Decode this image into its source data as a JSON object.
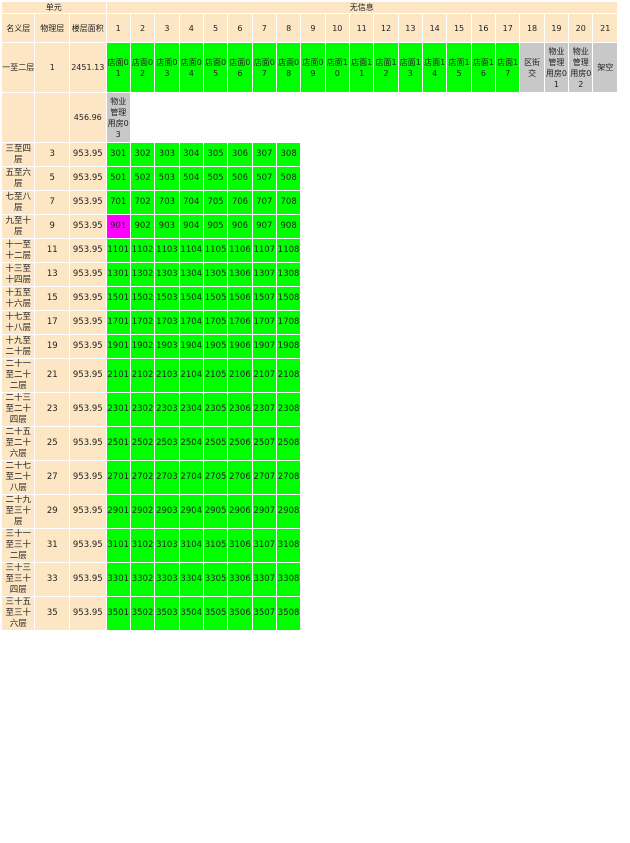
{
  "header": {
    "unit_label": "单元",
    "info_label": "无信息",
    "columns": [
      "名义层",
      "物理层",
      "楼层面积"
    ],
    "unit_numbers": [
      1,
      2,
      3,
      4,
      5,
      6,
      7,
      8,
      9,
      10,
      11,
      12,
      13,
      14,
      15,
      16,
      17,
      18,
      19,
      20,
      21
    ]
  },
  "rows": [
    {
      "name": "一至二层",
      "floor": 1,
      "area": 2451.13,
      "units": [
        "店面01",
        "店面02",
        "店面03",
        "店面04",
        "店面05",
        "店面06",
        "店面07",
        "店面08",
        "店面09",
        "店面10",
        "店面11",
        "店面12",
        "店面13",
        "店面14",
        "店面15",
        "店面16",
        "店面17",
        "区街交",
        "物业管理用房01",
        "物业管理用房02",
        "架空"
      ],
      "colors": [
        "#00ff00",
        "#00ff00",
        "#00ff00",
        "#00ff00",
        "#00ff00",
        "#00ff00",
        "#00ff00",
        "#00ff00",
        "#00ff00",
        "#00ff00",
        "#00ff00",
        "#00ff00",
        "#00ff00",
        "#00ff00",
        "#00ff00",
        "#00ff00",
        "#00ff00",
        "#c8c8c8",
        "#c8c8c8",
        "#c8c8c8",
        "#c8c8c8"
      ]
    },
    {
      "area": 456.96,
      "units": [
        "物业管理用房03"
      ],
      "colors": [
        "#c8c8c8"
      ]
    },
    {
      "name": "三至四层",
      "floor": 3,
      "area": 953.95,
      "units": [
        "301",
        "302",
        "303",
        "304",
        "305",
        "306",
        "307",
        "308"
      ],
      "colors": [
        "#00ff00",
        "#00ff00",
        "#00ff00",
        "#00ff00",
        "#00ff00",
        "#00ff00",
        "#00ff00",
        "#00ff00"
      ]
    },
    {
      "name": "五至六层",
      "floor": 5,
      "area": 953.95,
      "units": [
        "501",
        "502",
        "503",
        "504",
        "505",
        "506",
        "507",
        "508"
      ],
      "colors": [
        "#00ff00",
        "#00ff00",
        "#00ff00",
        "#00ff00",
        "#00ff00",
        "#00ff00",
        "#00ff00",
        "#00ff00"
      ]
    },
    {
      "name": "七至八层",
      "floor": 7,
      "area": 953.95,
      "units": [
        "701",
        "702",
        "703",
        "704",
        "705",
        "706",
        "707",
        "708"
      ],
      "colors": [
        "#00ff00",
        "#00ff00",
        "#00ff00",
        "#00ff00",
        "#00ff00",
        "#00ff00",
        "#00ff00",
        "#00ff00"
      ]
    },
    {
      "name": "九至十层",
      "floor": 9,
      "area": 953.95,
      "units": [
        "901",
        "902",
        "903",
        "904",
        "905",
        "906",
        "907",
        "908"
      ],
      "colors": [
        "#ff00ff",
        "#00ff00",
        "#00ff00",
        "#00ff00",
        "#00ff00",
        "#00ff00",
        "#00ff00",
        "#00ff00"
      ]
    },
    {
      "name": "十一至十二层",
      "floor": 11,
      "area": 953.95,
      "units": [
        "1101",
        "1102",
        "1103",
        "1104",
        "1105",
        "1106",
        "1107",
        "1108"
      ],
      "colors": [
        "#00ff00",
        "#00ff00",
        "#00ff00",
        "#00ff00",
        "#00ff00",
        "#00ff00",
        "#00ff00",
        "#00ff00"
      ]
    },
    {
      "name": "十三至十四层",
      "floor": 13,
      "area": 953.95,
      "units": [
        "1301",
        "1302",
        "1303",
        "1304",
        "1305",
        "1306",
        "1307",
        "1308"
      ],
      "colors": [
        "#00ff00",
        "#00ff00",
        "#00ff00",
        "#00ff00",
        "#00ff00",
        "#00ff00",
        "#00ff00",
        "#00ff00"
      ]
    },
    {
      "name": "十五至十六层",
      "floor": 15,
      "area": 953.95,
      "units": [
        "1501",
        "1502",
        "1503",
        "1504",
        "1505",
        "1506",
        "1507",
        "1508"
      ],
      "colors": [
        "#00ff00",
        "#00ff00",
        "#00ff00",
        "#00ff00",
        "#00ff00",
        "#00ff00",
        "#00ff00",
        "#00ff00"
      ]
    },
    {
      "name": "十七至十八层",
      "floor": 17,
      "area": 953.95,
      "units": [
        "1701",
        "1702",
        "1703",
        "1704",
        "1705",
        "1706",
        "1707",
        "1708"
      ],
      "colors": [
        "#00ff00",
        "#00ff00",
        "#00ff00",
        "#00ff00",
        "#00ff00",
        "#00ff00",
        "#00ff00",
        "#00ff00"
      ]
    },
    {
      "name": "十九至二十层",
      "floor": 19,
      "area": 953.95,
      "units": [
        "1901",
        "1902",
        "1903",
        "1904",
        "1905",
        "1906",
        "1907",
        "1908"
      ],
      "colors": [
        "#00ff00",
        "#00ff00",
        "#00ff00",
        "#00ff00",
        "#00ff00",
        "#00ff00",
        "#00ff00",
        "#00ff00"
      ]
    },
    {
      "name": "二十一至二十二层",
      "floor": 21,
      "area": 953.95,
      "units": [
        "2101",
        "2102",
        "2103",
        "2104",
        "2105",
        "2106",
        "2107",
        "2108"
      ],
      "colors": [
        "#00ff00",
        "#00ff00",
        "#00ff00",
        "#00ff00",
        "#00ff00",
        "#00ff00",
        "#00ff00",
        "#00ff00"
      ]
    },
    {
      "name": "二十三至二十四层",
      "floor": 23,
      "area": 953.95,
      "units": [
        "2301",
        "2302",
        "2303",
        "2304",
        "2305",
        "2306",
        "2307",
        "2308"
      ],
      "colors": [
        "#00ff00",
        "#00ff00",
        "#00ff00",
        "#00ff00",
        "#00ff00",
        "#00ff00",
        "#00ff00",
        "#00ff00"
      ]
    },
    {
      "name": "二十五至二十六层",
      "floor": 25,
      "area": 953.95,
      "units": [
        "2501",
        "2502",
        "2503",
        "2504",
        "2505",
        "2506",
        "2507",
        "2508"
      ],
      "colors": [
        "#00ff00",
        "#00ff00",
        "#00ff00",
        "#00ff00",
        "#00ff00",
        "#00ff00",
        "#00ff00",
        "#00ff00"
      ]
    },
    {
      "name": "二十七至二十八层",
      "floor": 27,
      "area": 953.95,
      "units": [
        "2701",
        "2702",
        "2703",
        "2704",
        "2705",
        "2706",
        "2707",
        "2708"
      ],
      "colors": [
        "#00ff00",
        "#00ff00",
        "#00ff00",
        "#00ff00",
        "#00ff00",
        "#00ff00",
        "#00ff00",
        "#00ff00"
      ]
    },
    {
      "name": "二十九至三十层",
      "floor": 29,
      "area": 953.95,
      "units": [
        "2901",
        "2902",
        "2903",
        "2904",
        "2905",
        "2906",
        "2907",
        "2908"
      ],
      "colors": [
        "#00ff00",
        "#00ff00",
        "#00ff00",
        "#00ff00",
        "#00ff00",
        "#00ff00",
        "#00ff00",
        "#00ff00"
      ]
    },
    {
      "name": "三十一至三十二层",
      "floor": 31,
      "area": 953.95,
      "units": [
        "3101",
        "3102",
        "3103",
        "3104",
        "3105",
        "3106",
        "3107",
        "3108"
      ],
      "colors": [
        "#00ff00",
        "#00ff00",
        "#00ff00",
        "#00ff00",
        "#00ff00",
        "#00ff00",
        "#00ff00",
        "#00ff00"
      ]
    },
    {
      "name": "三十三至三十四层",
      "floor": 33,
      "area": 953.95,
      "units": [
        "3301",
        "3302",
        "3303",
        "3304",
        "3305",
        "3306",
        "3307",
        "3308"
      ],
      "colors": [
        "#00ff00",
        "#00ff00",
        "#00ff00",
        "#00ff00",
        "#00ff00",
        "#00ff00",
        "#00ff00",
        "#00ff00"
      ]
    },
    {
      "name": "三十五至三十六层",
      "floor": 35,
      "area": 953.95,
      "units": [
        "3501",
        "3502",
        "3503",
        "3504",
        "3505",
        "3506",
        "3507",
        "3508"
      ],
      "colors": [
        "#00ff00",
        "#00ff00",
        "#00ff00",
        "#00ff00",
        "#00ff00",
        "#00ff00",
        "#00ff00",
        "#00ff00"
      ]
    }
  ]
}
